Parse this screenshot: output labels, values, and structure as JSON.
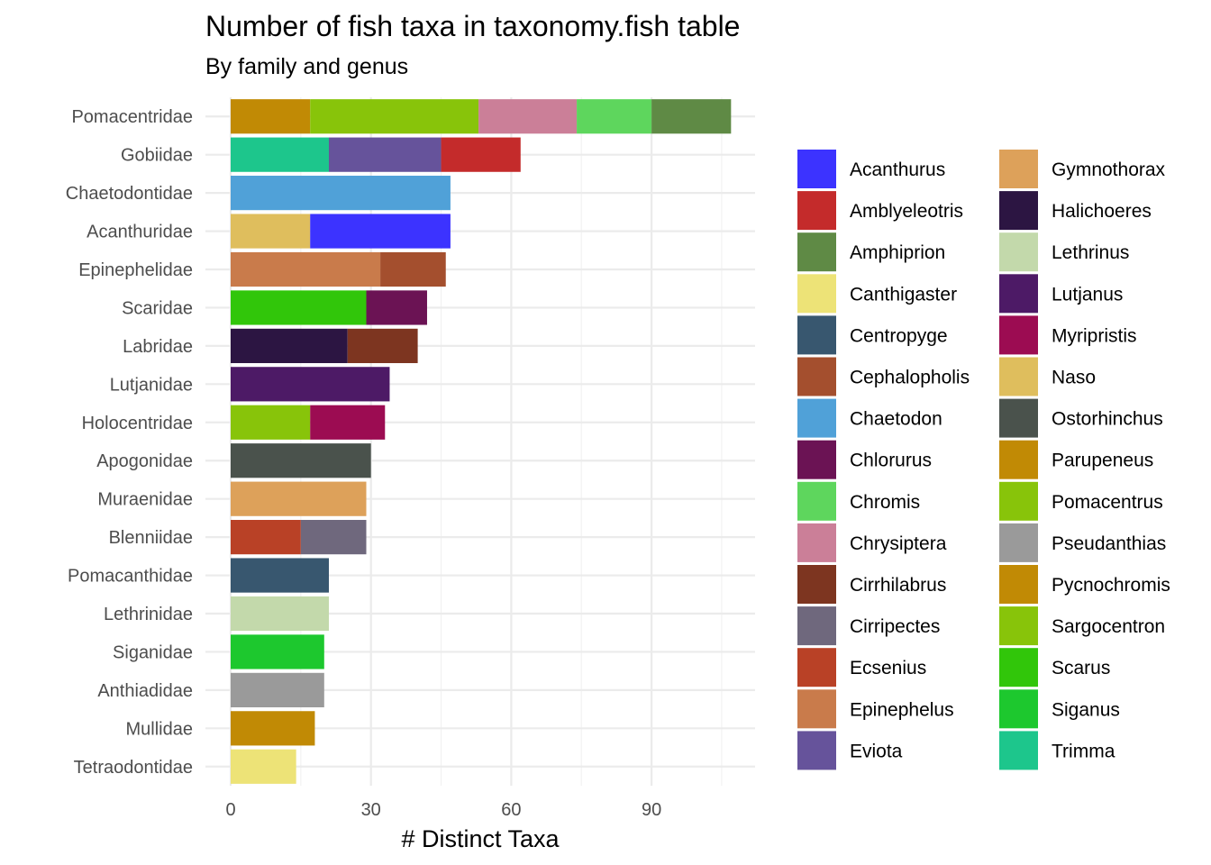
{
  "chart_data": {
    "type": "bar",
    "orientation": "horizontal",
    "stacked": true,
    "title": "Number of fish taxa in taxonomy.fish table",
    "subtitle": "By family and genus",
    "xlabel": "# Distinct Taxa",
    "ylabel": "",
    "xlim": [
      0,
      112
    ],
    "xticks": [
      0,
      30,
      60,
      90
    ],
    "grid": true,
    "legend_position": "right",
    "categories": [
      "Pomacentridae",
      "Gobiidae",
      "Chaetodontidae",
      "Acanthuridae",
      "Epinephelidae",
      "Scaridae",
      "Labridae",
      "Lutjanidae",
      "Holocentridae",
      "Apogonidae",
      "Muraenidae",
      "Blenniidae",
      "Pomacanthidae",
      "Lethrinidae",
      "Siganidae",
      "Anthiadidae",
      "Mullidae",
      "Tetraodontidae"
    ],
    "stacks": [
      [
        {
          "genus": "Pycnochromis",
          "value": 17
        },
        {
          "genus": "Pomacentrus",
          "value": 36
        },
        {
          "genus": "Chrysiptera",
          "value": 21
        },
        {
          "genus": "Chromis",
          "value": 16
        },
        {
          "genus": "Amphiprion",
          "value": 17
        }
      ],
      [
        {
          "genus": "Trimma",
          "value": 21
        },
        {
          "genus": "Eviota",
          "value": 24
        },
        {
          "genus": "Amblyeleotris",
          "value": 17
        }
      ],
      [
        {
          "genus": "Chaetodon",
          "value": 47
        }
      ],
      [
        {
          "genus": "Naso",
          "value": 17
        },
        {
          "genus": "Acanthurus",
          "value": 30
        }
      ],
      [
        {
          "genus": "Epinephelus",
          "value": 32
        },
        {
          "genus": "Cephalopholis",
          "value": 14
        }
      ],
      [
        {
          "genus": "Scarus",
          "value": 29
        },
        {
          "genus": "Chlorurus",
          "value": 13
        }
      ],
      [
        {
          "genus": "Halichoeres",
          "value": 25
        },
        {
          "genus": "Cirrhilabrus",
          "value": 15
        }
      ],
      [
        {
          "genus": "Lutjanus",
          "value": 34
        }
      ],
      [
        {
          "genus": "Sargocentron",
          "value": 17
        },
        {
          "genus": "Myripristis",
          "value": 16
        }
      ],
      [
        {
          "genus": "Ostorhinchus",
          "value": 30
        }
      ],
      [
        {
          "genus": "Gymnothorax",
          "value": 29
        }
      ],
      [
        {
          "genus": "Ecsenius",
          "value": 15
        },
        {
          "genus": "Cirripectes",
          "value": 14
        }
      ],
      [
        {
          "genus": "Centropyge",
          "value": 21
        }
      ],
      [
        {
          "genus": "Lethrinus",
          "value": 21
        }
      ],
      [
        {
          "genus": "Siganus",
          "value": 20
        }
      ],
      [
        {
          "genus": "Pseudanthias",
          "value": 20
        }
      ],
      [
        {
          "genus": "Parupeneus",
          "value": 18
        }
      ],
      [
        {
          "genus": "Canthigaster",
          "value": 14
        }
      ]
    ],
    "legend": [
      {
        "label": "Acanthurus",
        "color": "#3C33FF"
      },
      {
        "label": "Amblyeleotris",
        "color": "#C42B2B"
      },
      {
        "label": "Amphiprion",
        "color": "#5F8A45"
      },
      {
        "label": "Canthigaster",
        "color": "#EDE377"
      },
      {
        "label": "Centropyge",
        "color": "#38576F"
      },
      {
        "label": "Cephalopholis",
        "color": "#A44F2E"
      },
      {
        "label": "Chaetodon",
        "color": "#50A1D8"
      },
      {
        "label": "Chlorurus",
        "color": "#6B1354"
      },
      {
        "label": "Chromis",
        "color": "#5ED65D"
      },
      {
        "label": "Chrysiptera",
        "color": "#CB7F98"
      },
      {
        "label": "Cirrhilabrus",
        "color": "#7D3520"
      },
      {
        "label": "Cirripectes",
        "color": "#6F687D"
      },
      {
        "label": "Ecsenius",
        "color": "#B94126"
      },
      {
        "label": "Epinephelus",
        "color": "#C97B4B"
      },
      {
        "label": "Eviota",
        "color": "#66539B"
      },
      {
        "label": "Gymnothorax",
        "color": "#DDA15A"
      },
      {
        "label": "Halichoeres",
        "color": "#2C1542"
      },
      {
        "label": "Lethrinus",
        "color": "#C3D9AB"
      },
      {
        "label": "Lutjanus",
        "color": "#4D1A66"
      },
      {
        "label": "Myripristis",
        "color": "#9C0C52"
      },
      {
        "label": "Naso",
        "color": "#DFBE5D"
      },
      {
        "label": "Ostorhinchus",
        "color": "#4A524C"
      },
      {
        "label": "Parupeneus",
        "color": "#C18A05"
      },
      {
        "label": "Pomacentrus",
        "color": "#88C40A"
      },
      {
        "label": "Pseudanthias",
        "color": "#9A9A9A"
      },
      {
        "label": "Pycnochromis",
        "color": "#C18A05"
      },
      {
        "label": "Sargocentron",
        "color": "#88C40A"
      },
      {
        "label": "Scarus",
        "color": "#31C60A"
      },
      {
        "label": "Siganus",
        "color": "#1DC82E"
      },
      {
        "label": "Trimma",
        "color": "#1DC68C"
      }
    ]
  }
}
